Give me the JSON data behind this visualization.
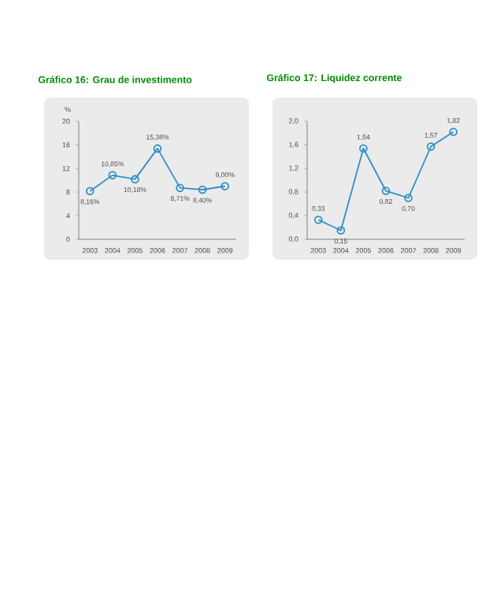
{
  "chart_data": [
    {
      "type": "line",
      "title": "Gráfico 16: Grau de investimento",
      "ylabel": "%",
      "categories": [
        "2003",
        "2004",
        "2005",
        "2006",
        "2007",
        "2008",
        "2009"
      ],
      "series": [
        {
          "color": "#2f8fc6",
          "values": [
            8.16,
            10.85,
            10.18,
            15.38,
            8.71,
            8.4,
            9.0
          ],
          "value_labels": [
            "8,16%",
            "10,85%",
            "10,18%",
            "15,38%",
            "8,71%",
            "8,40%",
            "9,00%"
          ]
        }
      ],
      "ylim": [
        0,
        20
      ],
      "yticks": [
        0,
        4,
        8,
        12,
        16,
        20
      ],
      "marker": "circle",
      "grid": false
    },
    {
      "type": "line",
      "title": "Gráfico 17: Liquidez corrente",
      "categories": [
        "2003",
        "2004",
        "2005",
        "2006",
        "2007",
        "2008",
        "2009"
      ],
      "series": [
        {
          "color": "#2f8fc6",
          "values": [
            0.33,
            0.15,
            1.54,
            0.82,
            0.7,
            1.57,
            1.82
          ],
          "value_labels": [
            "0,33",
            "0,15",
            "1,54",
            "0,82",
            "0,70",
            "1,57",
            "1,82"
          ]
        }
      ],
      "ylim": [
        0,
        2
      ],
      "yticks": [
        {
          "value": 0,
          "label": "0,0"
        },
        {
          "value": 0.4,
          "label": "0,4"
        },
        {
          "value": 0.8,
          "label": "0,8"
        },
        {
          "value": 1.2,
          "label": "1,2"
        },
        {
          "value": 1.6,
          "label": "1,6"
        },
        {
          "value": 2.0,
          "label": "2,0"
        }
      ],
      "marker": "circle",
      "grid": false
    }
  ]
}
